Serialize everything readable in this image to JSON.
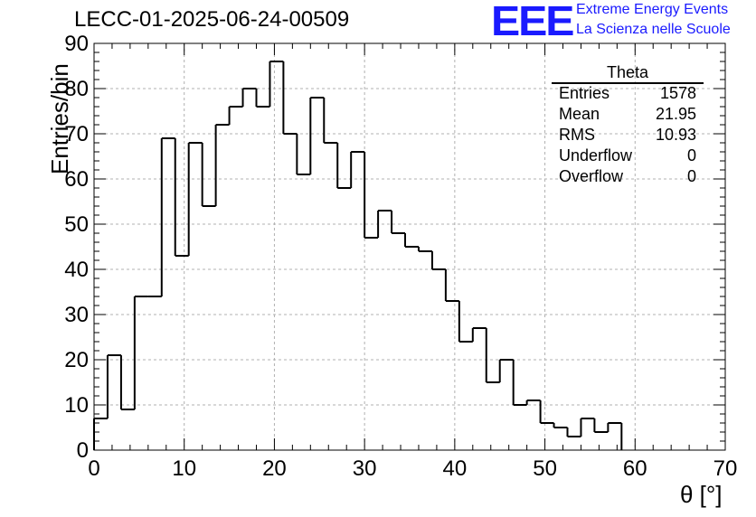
{
  "title": "LECC-01-2025-06-24-00509",
  "brand": {
    "logo": "EEE",
    "line1": "Extreme Energy Events",
    "line2": "La Scienza nelle Scuole",
    "color": "#1a1aff"
  },
  "stats": {
    "title": "Theta",
    "rows": [
      {
        "key": "Entries",
        "value": "1578"
      },
      {
        "key": "Mean",
        "value": "21.95"
      },
      {
        "key": "RMS",
        "value": "10.93"
      },
      {
        "key": "Underflow",
        "value": "0"
      },
      {
        "key": "Overflow",
        "value": "0"
      }
    ]
  },
  "chart_data": {
    "type": "bar",
    "title": "LECC-01-2025-06-24-00509",
    "xlabel": "θ [°]",
    "ylabel": "Entries/bin",
    "xlim": [
      0,
      70
    ],
    "ylim": [
      0,
      90
    ],
    "xticks": [
      "0",
      "10",
      "20",
      "30",
      "40",
      "50",
      "60",
      "70"
    ],
    "yticks": [
      "0",
      "10",
      "20",
      "30",
      "40",
      "50",
      "60",
      "70",
      "80",
      "90"
    ],
    "grid": true,
    "bin_width": 1.5,
    "x": [
      0,
      1.5,
      3,
      4.5,
      6,
      7.5,
      9,
      10.5,
      12,
      13.5,
      15,
      16.5,
      18,
      19.5,
      21,
      22.5,
      24,
      25.5,
      27,
      28.5,
      30,
      31.5,
      33,
      34.5,
      36,
      37.5,
      39,
      40.5,
      42,
      43.5,
      45,
      46.5,
      48,
      49.5,
      51,
      52.5,
      54,
      55.5,
      57,
      58.5,
      60,
      61.5,
      63,
      64.5,
      66,
      67.5
    ],
    "values": [
      7,
      21,
      9,
      34,
      34,
      69,
      43,
      68,
      54,
      72,
      76,
      80,
      76,
      86,
      70,
      61,
      78,
      68,
      58,
      66,
      47,
      53,
      48,
      45,
      44,
      40,
      33,
      24,
      27,
      15,
      20,
      10,
      11,
      6,
      5,
      3,
      7,
      4,
      6,
      0,
      0,
      0,
      0,
      0,
      0,
      0
    ],
    "color": "#000000"
  }
}
